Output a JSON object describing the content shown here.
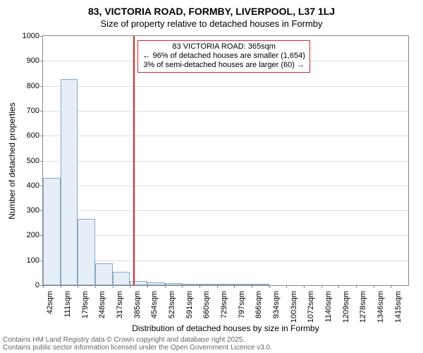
{
  "title_line1": "83, VICTORIA ROAD, FORMBY, LIVERPOOL, L37 1LJ",
  "title_line2": "Size of property relative to detached houses in Formby",
  "yaxis_label": "Number of detached properties",
  "xaxis_label": "Distribution of detached houses by size in Formby",
  "footer_line1": "Contains HM Land Registry data © Crown copyright and database right 2025.",
  "footer_line2": "Contains public sector information licensed under the Open Government Licence v3.0.",
  "chart": {
    "type": "bar",
    "ylim": [
      0,
      1000
    ],
    "ytick_step": 100,
    "yticks": [
      0,
      100,
      200,
      300,
      400,
      500,
      600,
      700,
      800,
      900,
      1000
    ],
    "bar_fill": "#e6eef7",
    "bar_stroke": "#8aa8c8",
    "grid_color": "#dddddd",
    "axis_color": "#888888",
    "marker_color": "#d02828",
    "background_color": "#ffffff",
    "title_fontsize": 14,
    "label_fontsize": 12,
    "tick_fontsize": 11,
    "bars": [
      {
        "label": "42sqm",
        "value": 430
      },
      {
        "label": "111sqm",
        "value": 828
      },
      {
        "label": "179sqm",
        "value": 265
      },
      {
        "label": "248sqm",
        "value": 88
      },
      {
        "label": "317sqm",
        "value": 55
      },
      {
        "label": "385sqm",
        "value": 18
      },
      {
        "label": "454sqm",
        "value": 12
      },
      {
        "label": "523sqm",
        "value": 8
      },
      {
        "label": "591sqm",
        "value": 5
      },
      {
        "label": "660sqm",
        "value": 7
      },
      {
        "label": "729sqm",
        "value": 4
      },
      {
        "label": "797sqm",
        "value": 2
      },
      {
        "label": "866sqm",
        "value": 2
      },
      {
        "label": "934sqm",
        "value": 1
      },
      {
        "label": "1003sqm",
        "value": 1
      },
      {
        "label": "1072sqm",
        "value": 0
      },
      {
        "label": "1140sqm",
        "value": 1
      },
      {
        "label": "1209sqm",
        "value": 0
      },
      {
        "label": "1278sqm",
        "value": 0
      },
      {
        "label": "1346sqm",
        "value": 0
      },
      {
        "label": "1415sqm",
        "value": 0
      }
    ],
    "marker_value_sqm": 365,
    "x_domain": [
      42,
      1415
    ]
  },
  "annotation": {
    "line1": "83 VICTORIA ROAD: 365sqm",
    "line2": "← 96% of detached houses are smaller (1,654)",
    "line3": "3% of semi-detached houses are larger (60) →"
  }
}
